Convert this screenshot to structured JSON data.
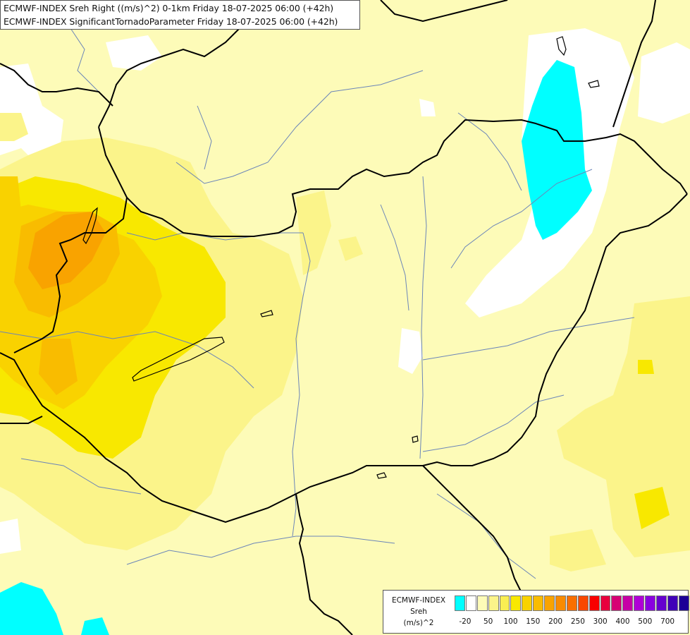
{
  "header": {
    "line1": "ECMWF-INDEX Sreh Right ((m/s)^2) 0-1km Friday 18-07-2025 06:00 (+42h)",
    "line2": "ECMWF-INDEX SignificantTornadoParameter Friday 18-07-2025 06:00 (+42h)"
  },
  "legend": {
    "title1": "ECMWF-INDEX",
    "title2": "Sreh",
    "title3": "(m/s)^2",
    "colors": [
      "#00ffff",
      "#ffffff",
      "#fdfbb8",
      "#fbf48a",
      "#f9ee52",
      "#f8e800",
      "#f9d200",
      "#f9bc00",
      "#f9a300",
      "#f98b00",
      "#f96f00",
      "#f94800",
      "#f90000",
      "#e8003e",
      "#d60074",
      "#c600a6",
      "#b000d6",
      "#8a00e0",
      "#6500cf",
      "#4000b8",
      "#1c0096"
    ],
    "ticks": [
      "-20",
      "50",
      "100",
      "150",
      "200",
      "250",
      "300",
      "400",
      "500",
      "700"
    ]
  },
  "map": {
    "background": "#fdfbb8",
    "water_color": "#00ffff",
    "border_color": "#000000",
    "river_color": "#6b85b8"
  }
}
